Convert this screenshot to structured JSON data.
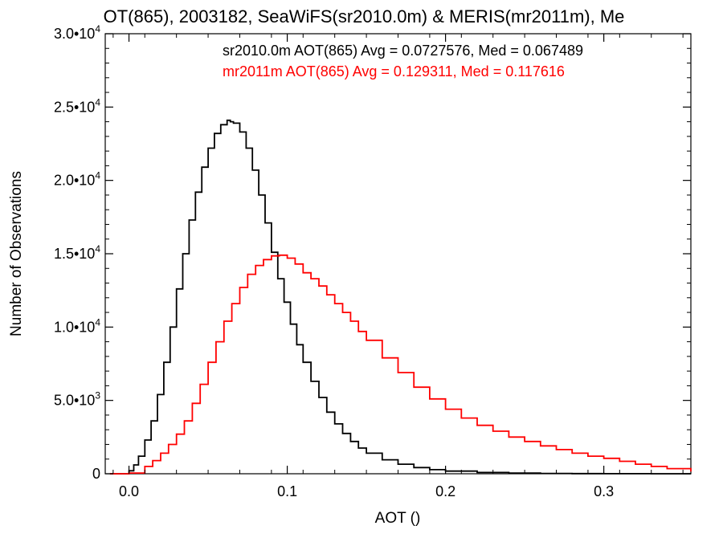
{
  "chart_data": {
    "type": "line",
    "title": "OT(865), 2003182, SeaWiFS(sr2010.0m) & MERIS(mr2011m), Me",
    "xlabel": "AOT ()",
    "ylabel": "Number of Observations",
    "xlim": [
      -0.015,
      0.355
    ],
    "ylim": [
      0,
      30000
    ],
    "x_ticks": [
      {
        "value": 0.0,
        "label": "0.0"
      },
      {
        "value": 0.1,
        "label": "0.1"
      },
      {
        "value": 0.2,
        "label": "0.2"
      },
      {
        "value": 0.3,
        "label": "0.3"
      }
    ],
    "y_ticks": [
      {
        "value": 0,
        "label": "0"
      },
      {
        "value": 5000,
        "label": "5.0•10",
        "exp": "3"
      },
      {
        "value": 10000,
        "label": "1.0•10",
        "exp": "4"
      },
      {
        "value": 15000,
        "label": "1.5•10",
        "exp": "4"
      },
      {
        "value": 20000,
        "label": "2.0•10",
        "exp": "4"
      },
      {
        "value": 25000,
        "label": "2.5•10",
        "exp": "4"
      },
      {
        "value": 30000,
        "label": "3.0•10",
        "exp": "4"
      }
    ],
    "legend": [
      {
        "text": "sr2010.0m AOT(865) Avg = 0.0727576, Med = 0.067489",
        "color": "#000000"
      },
      {
        "text": "mr2011m AOT(865) Avg = 0.129311, Med = 0.117616",
        "color": "#ff0000"
      }
    ],
    "series": [
      {
        "color": "#000000",
        "x": [
          -0.012,
          -0.005,
          0.0,
          0.003,
          0.006,
          0.01,
          0.014,
          0.018,
          0.022,
          0.026,
          0.03,
          0.034,
          0.038,
          0.042,
          0.046,
          0.05,
          0.054,
          0.058,
          0.062,
          0.064,
          0.066,
          0.07,
          0.074,
          0.078,
          0.082,
          0.086,
          0.09,
          0.094,
          0.098,
          0.102,
          0.106,
          0.11,
          0.115,
          0.12,
          0.125,
          0.13,
          0.135,
          0.14,
          0.145,
          0.15,
          0.16,
          0.17,
          0.18,
          0.19,
          0.2,
          0.22,
          0.24,
          0.26,
          0.28,
          0.3,
          0.33,
          0.355
        ],
        "y": [
          0,
          0,
          200,
          600,
          1200,
          2300,
          3600,
          5400,
          7600,
          10000,
          12600,
          15000,
          17300,
          19200,
          20900,
          22200,
          23200,
          23800,
          24100,
          24000,
          23900,
          23300,
          22200,
          20700,
          19000,
          17100,
          15100,
          13300,
          11700,
          10200,
          8800,
          7600,
          6300,
          5200,
          4200,
          3400,
          2750,
          2200,
          1750,
          1400,
          950,
          650,
          420,
          280,
          180,
          90,
          45,
          20,
          10,
          5,
          0,
          0
        ]
      },
      {
        "color": "#ff0000",
        "x": [
          -0.012,
          0.0,
          0.01,
          0.015,
          0.02,
          0.025,
          0.03,
          0.035,
          0.04,
          0.045,
          0.05,
          0.055,
          0.06,
          0.065,
          0.07,
          0.075,
          0.08,
          0.085,
          0.09,
          0.095,
          0.1,
          0.105,
          0.11,
          0.115,
          0.12,
          0.125,
          0.13,
          0.135,
          0.14,
          0.145,
          0.15,
          0.16,
          0.17,
          0.18,
          0.19,
          0.2,
          0.21,
          0.22,
          0.23,
          0.24,
          0.25,
          0.26,
          0.27,
          0.28,
          0.29,
          0.3,
          0.31,
          0.32,
          0.33,
          0.34,
          0.355
        ],
        "y": [
          0,
          50,
          500,
          900,
          1400,
          2000,
          2700,
          3600,
          4800,
          6100,
          7600,
          9000,
          10400,
          11600,
          12700,
          13600,
          14200,
          14600,
          14850,
          14900,
          14700,
          14300,
          13700,
          13300,
          12800,
          12200,
          11600,
          11000,
          10400,
          9700,
          9100,
          7900,
          6900,
          5900,
          5100,
          4400,
          3800,
          3300,
          2900,
          2500,
          2200,
          1900,
          1650,
          1400,
          1200,
          1050,
          850,
          650,
          500,
          350,
          150
        ]
      }
    ]
  }
}
